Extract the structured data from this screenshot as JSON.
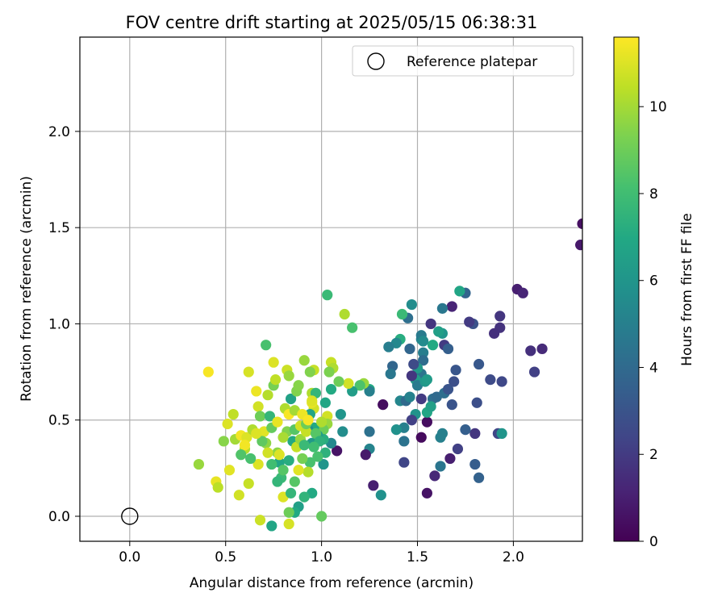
{
  "chart_data": {
    "type": "scatter",
    "title": "FOV centre drift starting at 2025/05/15 06:38:31",
    "xlabel": "Angular distance from reference (arcmin)",
    "ylabel": "Rotation from reference (arcmin)",
    "xlim": [
      -0.26,
      2.36
    ],
    "ylim": [
      -0.13,
      2.49
    ],
    "xticks": [
      "0.0",
      "0.5",
      "1.0",
      "1.5",
      "2.0"
    ],
    "yticks": [
      "0.0",
      "0.5",
      "1.0",
      "1.5",
      "2.0"
    ],
    "grid": true,
    "legend": {
      "placement": "top-right",
      "entries": [
        "Reference platepar"
      ]
    },
    "reference_point": {
      "x": 0.0,
      "y": 0.0
    },
    "colorbar": {
      "label": "Hours from first FF file",
      "min": 0,
      "max": 11.6,
      "ticks": [
        "0",
        "2",
        "4",
        "6",
        "8",
        "10"
      ],
      "colormap": "viridis"
    },
    "points": [
      [
        2.36,
        1.52,
        0.5
      ],
      [
        2.35,
        1.41,
        0.8
      ],
      [
        2.02,
        1.18,
        1.0
      ],
      [
        2.05,
        1.16,
        1.2
      ],
      [
        2.15,
        0.87,
        1.4
      ],
      [
        2.09,
        0.86,
        1.6
      ],
      [
        2.11,
        0.75,
        2.2
      ],
      [
        1.94,
        0.7,
        2.5
      ],
      [
        1.93,
        1.04,
        1.8
      ],
      [
        1.93,
        0.98,
        1.7
      ],
      [
        1.9,
        0.95,
        1.6
      ],
      [
        1.88,
        0.71,
        2.6
      ],
      [
        1.92,
        0.43,
        2.4
      ],
      [
        1.94,
        0.43,
        6.0
      ],
      [
        1.82,
        0.2,
        3.6
      ],
      [
        1.8,
        0.27,
        3.4
      ],
      [
        1.82,
        0.79,
        3.2
      ],
      [
        1.81,
        0.59,
        2.8
      ],
      [
        1.79,
        1.0,
        2.9
      ],
      [
        1.77,
        1.01,
        2.0
      ],
      [
        1.75,
        1.16,
        3.7
      ],
      [
        1.72,
        1.17,
        6.8
      ],
      [
        1.8,
        0.43,
        1.8
      ],
      [
        1.75,
        0.45,
        3.5
      ],
      [
        1.71,
        0.35,
        2.2
      ],
      [
        1.67,
        0.3,
        1.0
      ],
      [
        1.62,
        0.26,
        4.5
      ],
      [
        1.59,
        0.21,
        1.3
      ],
      [
        1.55,
        0.12,
        0.6
      ],
      [
        1.52,
        0.41,
        0.3
      ],
      [
        1.55,
        0.49,
        0.4
      ],
      [
        1.55,
        0.54,
        6.8
      ],
      [
        1.62,
        0.41,
        5.0
      ],
      [
        1.63,
        0.43,
        5.0
      ],
      [
        1.58,
        0.61,
        4.2
      ],
      [
        1.6,
        0.62,
        4.0
      ],
      [
        1.64,
        0.64,
        4.2
      ],
      [
        1.66,
        0.66,
        3.0
      ],
      [
        1.68,
        0.58,
        3.0
      ],
      [
        1.69,
        0.7,
        2.8
      ],
      [
        1.7,
        0.76,
        3.1
      ],
      [
        1.68,
        1.09,
        1.2
      ],
      [
        1.63,
        1.08,
        4.6
      ],
      [
        1.63,
        0.95,
        6.0
      ],
      [
        1.64,
        0.89,
        2.0
      ],
      [
        1.66,
        0.87,
        3.5
      ],
      [
        1.61,
        0.96,
        6.5
      ],
      [
        1.58,
        0.89,
        7.0
      ],
      [
        1.57,
        1.0,
        1.8
      ],
      [
        1.52,
        0.92,
        5.2
      ],
      [
        1.52,
        0.94,
        4.8
      ],
      [
        1.53,
        0.91,
        5.5
      ],
      [
        1.53,
        0.85,
        4.9
      ],
      [
        1.53,
        0.81,
        4.1
      ],
      [
        1.52,
        0.74,
        4.5
      ],
      [
        1.5,
        0.77,
        6.2
      ],
      [
        1.49,
        0.71,
        6.4
      ],
      [
        1.47,
        0.73,
        1.8
      ],
      [
        1.48,
        0.79,
        2.6
      ],
      [
        1.46,
        0.87,
        3.8
      ],
      [
        1.45,
        1.03,
        4.2
      ],
      [
        1.47,
        1.1,
        5.6
      ],
      [
        1.42,
        1.05,
        7.8
      ],
      [
        1.41,
        0.92,
        7.2
      ],
      [
        1.39,
        0.9,
        5.4
      ],
      [
        1.35,
        0.88,
        4.9
      ],
      [
        1.37,
        0.78,
        3.8
      ],
      [
        1.36,
        0.74,
        4.6
      ],
      [
        1.41,
        0.6,
        5.3
      ],
      [
        1.44,
        0.6,
        4.0
      ],
      [
        1.46,
        0.62,
        5.1
      ],
      [
        1.5,
        0.68,
        4.8
      ],
      [
        1.52,
        0.61,
        2.0
      ],
      [
        1.54,
        0.7,
        6.1
      ],
      [
        1.55,
        0.71,
        6.3
      ],
      [
        1.57,
        0.57,
        6.5
      ],
      [
        1.49,
        0.53,
        5.9
      ],
      [
        1.47,
        0.5,
        2.2
      ],
      [
        1.43,
        0.46,
        5.0
      ],
      [
        1.39,
        0.45,
        5.8
      ],
      [
        1.43,
        0.39,
        4.4
      ],
      [
        1.43,
        0.28,
        2.4
      ],
      [
        1.32,
        0.58,
        0.4
      ],
      [
        1.25,
        0.66,
        7.0
      ],
      [
        1.25,
        0.65,
        5.0
      ],
      [
        1.25,
        0.44,
        4.3
      ],
      [
        1.25,
        0.35,
        5.2
      ],
      [
        1.23,
        0.32,
        0.8
      ],
      [
        1.27,
        0.16,
        1.0
      ],
      [
        1.31,
        0.11,
        5.8
      ],
      [
        1.22,
        0.69,
        9.8
      ],
      [
        1.2,
        0.68,
        8.3
      ],
      [
        1.16,
        0.65,
        6.4
      ],
      [
        1.14,
        0.69,
        10.8
      ],
      [
        1.12,
        1.05,
        10.2
      ],
      [
        1.16,
        0.98,
        8.2
      ],
      [
        1.03,
        1.15,
        7.8
      ],
      [
        1.09,
        0.7,
        9.0
      ],
      [
        1.1,
        0.53,
        6.0
      ],
      [
        1.11,
        0.44,
        5.6
      ],
      [
        1.08,
        0.34,
        0.6
      ],
      [
        1.05,
        0.38,
        5.4
      ],
      [
        1.05,
        0.66,
        7.0
      ],
      [
        1.05,
        0.8,
        10.6
      ],
      [
        1.06,
        0.77,
        10.2
      ],
      [
        1.04,
        0.75,
        9.3
      ],
      [
        1.02,
        0.59,
        6.8
      ],
      [
        1.03,
        0.52,
        10.8
      ],
      [
        1.03,
        0.48,
        9.8
      ],
      [
        1.01,
        0.45,
        9.0
      ],
      [
        1.01,
        0.4,
        7.2
      ],
      [
        1.02,
        0.33,
        7.4
      ],
      [
        1.01,
        0.27,
        6.0
      ],
      [
        1.0,
        0.0,
        8.8
      ],
      [
        0.98,
        0.42,
        6.4
      ],
      [
        0.96,
        0.46,
        7.0
      ],
      [
        0.96,
        0.56,
        10.8
      ],
      [
        0.95,
        0.59,
        11.2
      ],
      [
        0.95,
        0.64,
        10.2
      ],
      [
        0.96,
        0.76,
        10.6
      ],
      [
        0.94,
        0.75,
        9.4
      ],
      [
        0.91,
        0.81,
        9.8
      ],
      [
        0.94,
        0.53,
        6.8
      ],
      [
        0.93,
        0.45,
        5.8
      ],
      [
        0.95,
        0.38,
        6.2
      ],
      [
        0.94,
        0.28,
        8.2
      ],
      [
        0.93,
        0.23,
        10.3
      ],
      [
        0.95,
        0.12,
        7.0
      ],
      [
        0.91,
        0.1,
        7.5
      ],
      [
        0.88,
        0.05,
        6.5
      ],
      [
        0.86,
        0.02,
        7.0
      ],
      [
        0.83,
        0.02,
        9.0
      ],
      [
        0.83,
        -0.04,
        10.9
      ],
      [
        0.74,
        -0.05,
        6.8
      ],
      [
        0.68,
        -0.02,
        10.7
      ],
      [
        0.67,
        0.27,
        11.0
      ],
      [
        0.62,
        0.17,
        10.6
      ],
      [
        0.57,
        0.11,
        10.8
      ],
      [
        0.52,
        0.24,
        11.1
      ],
      [
        0.45,
        0.18,
        11.2
      ],
      [
        0.46,
        0.15,
        10.4
      ],
      [
        0.36,
        0.27,
        9.8
      ],
      [
        0.41,
        0.75,
        11.5
      ],
      [
        0.49,
        0.39,
        9.5
      ],
      [
        0.51,
        0.48,
        11.0
      ],
      [
        0.54,
        0.53,
        10.5
      ],
      [
        0.55,
        0.4,
        10.0
      ],
      [
        0.58,
        0.42,
        11.4
      ],
      [
        0.6,
        0.35,
        10.3
      ],
      [
        0.61,
        0.41,
        11.0
      ],
      [
        0.62,
        0.75,
        10.9
      ],
      [
        0.64,
        0.45,
        10.2
      ],
      [
        0.66,
        0.65,
        11.3
      ],
      [
        0.67,
        0.57,
        10.8
      ],
      [
        0.68,
        0.52,
        9.0
      ],
      [
        0.7,
        0.44,
        11.1
      ],
      [
        0.71,
        0.89,
        8.2
      ],
      [
        0.72,
        0.63,
        10.3
      ],
      [
        0.73,
        0.52,
        7.6
      ],
      [
        0.74,
        0.46,
        8.8
      ],
      [
        0.75,
        0.68,
        9.2
      ],
      [
        0.75,
        0.8,
        11.0
      ],
      [
        0.76,
        0.71,
        10.5
      ],
      [
        0.77,
        0.49,
        11.2
      ],
      [
        0.77,
        0.33,
        9.6
      ],
      [
        0.78,
        0.28,
        6.8
      ],
      [
        0.79,
        0.2,
        7.8
      ],
      [
        0.8,
        0.24,
        8.5
      ],
      [
        0.8,
        0.1,
        11.0
      ],
      [
        0.81,
        0.56,
        10.2
      ],
      [
        0.82,
        0.44,
        9.4
      ],
      [
        0.82,
        0.76,
        10.7
      ],
      [
        0.83,
        0.73,
        9.8
      ],
      [
        0.83,
        0.53,
        11.5
      ],
      [
        0.84,
        0.61,
        6.6
      ],
      [
        0.84,
        0.12,
        7.6
      ],
      [
        0.85,
        0.39,
        7.0
      ],
      [
        0.86,
        0.45,
        8.5
      ],
      [
        0.86,
        0.55,
        10.0
      ],
      [
        0.87,
        0.65,
        9.4
      ],
      [
        0.87,
        0.36,
        10.6
      ],
      [
        0.88,
        0.68,
        9.5
      ],
      [
        0.89,
        0.4,
        9.8
      ],
      [
        0.89,
        0.47,
        10.8
      ],
      [
        0.9,
        0.53,
        11.3
      ],
      [
        0.91,
        0.37,
        7.8
      ],
      [
        0.92,
        0.44,
        10.6
      ],
      [
        0.92,
        0.48,
        9.0
      ],
      [
        0.93,
        0.5,
        11.5
      ],
      [
        0.97,
        0.43,
        8.5
      ],
      [
        0.98,
        0.31,
        8.2
      ],
      [
        0.99,
        0.39,
        7.4
      ],
      [
        0.71,
        0.38,
        9.6
      ],
      [
        0.72,
        0.33,
        10.8
      ],
      [
        0.74,
        0.27,
        8.0
      ],
      [
        0.77,
        0.18,
        7.6
      ],
      [
        0.78,
        0.32,
        11.0
      ],
      [
        0.8,
        0.41,
        10.1
      ],
      [
        0.69,
        0.39,
        8.7
      ],
      [
        0.66,
        0.43,
        11.0
      ],
      [
        0.6,
        0.37,
        11.4
      ],
      [
        0.58,
        0.32,
        8.4
      ],
      [
        0.63,
        0.3,
        8.2
      ],
      [
        0.86,
        0.18,
        8.5
      ],
      [
        0.88,
        0.24,
        11.1
      ],
      [
        0.9,
        0.3,
        9.2
      ],
      [
        0.83,
        0.29,
        7.2
      ],
      [
        0.96,
        0.36,
        8.0
      ],
      [
        1.0,
        0.49,
        10.2
      ],
      [
        0.97,
        0.64,
        7.6
      ],
      [
        0.95,
        0.6,
        11.0
      ]
    ]
  }
}
